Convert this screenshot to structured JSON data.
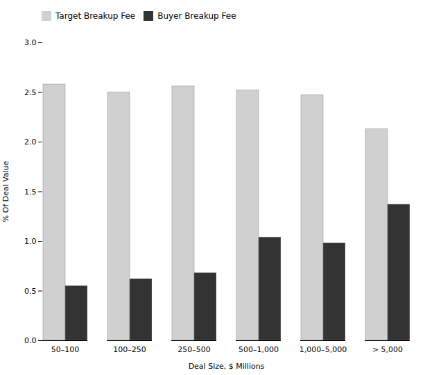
{
  "chart_data": {
    "type": "bar",
    "categories": [
      "50–100",
      "100–250",
      "250–500",
      "500–1,000",
      "1,000–5,000",
      "> 5,000"
    ],
    "series": [
      {
        "name": "Target Breakup Fee",
        "color": "#d0d0d0",
        "values": [
          2.58,
          2.5,
          2.56,
          2.52,
          2.47,
          2.13
        ]
      },
      {
        "name": "Buyer Breakup Fee",
        "color": "#333333",
        "values": [
          0.55,
          0.62,
          0.68,
          1.04,
          0.98,
          1.37
        ]
      }
    ],
    "xlabel": "Deal Size, $ Millions",
    "ylabel": "% Of Deal Value",
    "ylim": [
      0.0,
      3.0
    ],
    "yticks": [
      {
        "value": 0.0,
        "label": "0.0"
      },
      0.5,
      {
        "value": 1.0,
        "label": "1.0"
      },
      1.5,
      {
        "value": 2.0,
        "label": "2.0"
      },
      2.5,
      {
        "value": 3.0,
        "label": "3.0"
      }
    ],
    "grid": false,
    "legend": "upper left"
  }
}
